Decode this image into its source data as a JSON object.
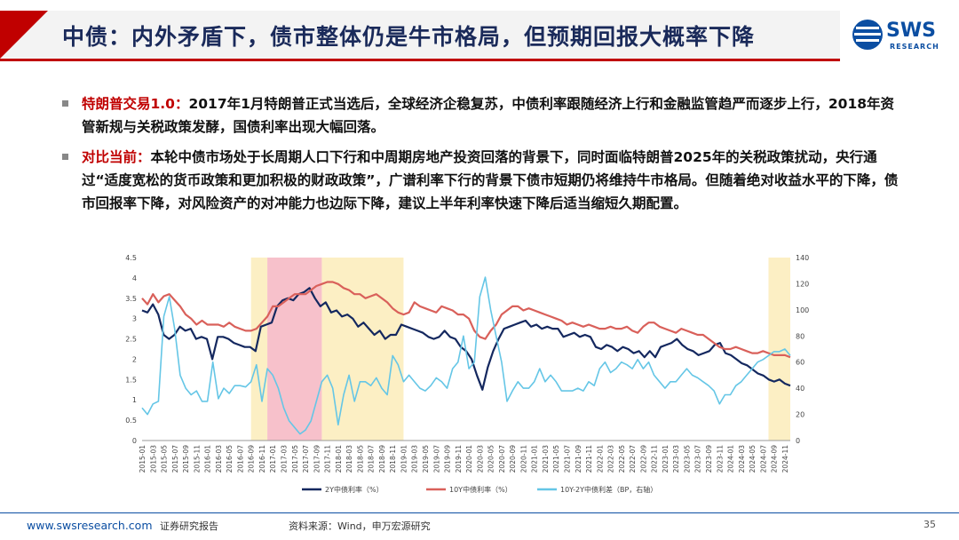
{
  "header": {
    "title": "中债：内外矛盾下，债市整体仍是牛市格局，但预期回报大概率下降",
    "logo_text": "SWS",
    "logo_sub": "RESEARCH"
  },
  "bullets": [
    {
      "lead": "特朗普交易1.0：",
      "text": "2017年1月特朗普正式当选后，全球经济企稳复苏，中债利率跟随经济上行和金融监管趋严而逐步上行，2018年资管新规与关税政策发酵，国债利率出现大幅回落。"
    },
    {
      "lead": "对比当前：",
      "text": "本轮中债市场处于长周期人口下行和中周期房地产投资回落的背景下，同时面临特朗普2025年的关税政策扰动，央行通过“适度宽松的货币政策和更加积极的财政政策”，广谱利率下行的背景下债市短期仍将维持牛市格局。但随着绝对收益水平的下降，债市回报率下降，对风险资产的对冲能力也边际下降，建议上半年利率快速下降后适当缩短久期配置。"
    }
  ],
  "chart_data": {
    "type": "line",
    "x_ticks": [
      "2015-01",
      "2015-03",
      "2015-05",
      "2015-07",
      "2015-09",
      "2015-11",
      "2016-01",
      "2016-03",
      "2016-05",
      "2016-07",
      "2016-09",
      "2016-11",
      "2017-01",
      "2017-03",
      "2017-05",
      "2017-07",
      "2017-09",
      "2017-11",
      "2018-01",
      "2018-03",
      "2018-05",
      "2018-07",
      "2018-09",
      "2018-11",
      "2019-01",
      "2019-03",
      "2019-05",
      "2019-07",
      "2019-09",
      "2019-11",
      "2020-01",
      "2020-03",
      "2020-05",
      "2020-07",
      "2020-09",
      "2020-11",
      "2021-01",
      "2021-03",
      "2021-05",
      "2021-07",
      "2021-09",
      "2021-11",
      "2022-01",
      "2022-03",
      "2022-05",
      "2022-07",
      "2022-09",
      "2022-11",
      "2023-01",
      "2023-03",
      "2023-05",
      "2023-07",
      "2023-09",
      "2023-11",
      "2024-01",
      "2024-03",
      "2024-05",
      "2024-07",
      "2024-09",
      "2024-11"
    ],
    "yleft": {
      "min": 0,
      "max": 4.5,
      "ticks": [
        "0",
        "0.5",
        "1",
        "1.5",
        "2",
        "2.5",
        "3",
        "3.5",
        "4",
        "4.5"
      ]
    },
    "yright": {
      "min": 0,
      "max": 140,
      "ticks": [
        "0",
        "20",
        "40",
        "60",
        "80",
        "100",
        "120",
        "140"
      ]
    },
    "shaded_regions": [
      {
        "from": "2016-09",
        "to": "2016-12",
        "color": "#fcefc4"
      },
      {
        "from": "2016-12",
        "to": "2017-10",
        "color": "#f7c1cb"
      },
      {
        "from": "2017-10",
        "to": "2019-01",
        "color": "#fcefc4"
      },
      {
        "from": "2024-08",
        "to": "2024-12",
        "color": "#fcefc4"
      }
    ],
    "series": [
      {
        "name": "2Y中债利率（%）",
        "axis": "left",
        "color": "#14285f",
        "values": [
          3.2,
          3.15,
          3.35,
          3.1,
          2.6,
          2.5,
          2.6,
          2.8,
          2.7,
          2.75,
          2.5,
          2.55,
          2.5,
          2.0,
          2.55,
          2.55,
          2.5,
          2.4,
          2.35,
          2.3,
          2.3,
          2.2,
          2.8,
          2.85,
          2.9,
          3.3,
          3.45,
          3.5,
          3.45,
          3.6,
          3.65,
          3.75,
          3.5,
          3.3,
          3.4,
          3.15,
          3.2,
          3.05,
          3.1,
          3.0,
          2.8,
          2.9,
          2.75,
          2.6,
          2.7,
          2.5,
          2.6,
          2.6,
          2.85,
          2.8,
          2.75,
          2.7,
          2.65,
          2.55,
          2.5,
          2.55,
          2.7,
          2.55,
          2.5,
          2.3,
          2.2,
          2.0,
          1.6,
          1.25,
          1.8,
          2.2,
          2.5,
          2.75,
          2.8,
          2.85,
          2.9,
          2.95,
          2.8,
          2.85,
          2.75,
          2.8,
          2.75,
          2.75,
          2.55,
          2.6,
          2.65,
          2.55,
          2.6,
          2.55,
          2.3,
          2.25,
          2.35,
          2.3,
          2.2,
          2.3,
          2.25,
          2.15,
          2.2,
          2.05,
          2.2,
          2.05,
          2.3,
          2.35,
          2.4,
          2.5,
          2.35,
          2.25,
          2.2,
          2.1,
          2.15,
          2.2,
          2.35,
          2.4,
          2.15,
          2.1,
          2.0,
          1.9,
          1.85,
          1.75,
          1.65,
          1.6,
          1.5,
          1.45,
          1.5,
          1.4,
          1.35
        ]
      },
      {
        "name": "10Y中债利率（%）",
        "axis": "left",
        "color": "#d9605a",
        "values": [
          3.5,
          3.35,
          3.6,
          3.4,
          3.55,
          3.6,
          3.45,
          3.3,
          3.1,
          3.0,
          2.85,
          2.95,
          2.85,
          2.85,
          2.85,
          2.8,
          2.9,
          2.8,
          2.75,
          2.7,
          2.7,
          2.75,
          2.9,
          3.05,
          3.3,
          3.3,
          3.4,
          3.5,
          3.6,
          3.6,
          3.6,
          3.7,
          3.8,
          3.85,
          3.9,
          3.9,
          3.85,
          3.75,
          3.7,
          3.6,
          3.6,
          3.5,
          3.55,
          3.6,
          3.5,
          3.4,
          3.25,
          3.15,
          3.1,
          3.15,
          3.4,
          3.3,
          3.25,
          3.2,
          3.15,
          3.3,
          3.25,
          3.2,
          3.1,
          3.1,
          3.0,
          2.7,
          2.55,
          2.5,
          2.7,
          2.85,
          3.1,
          3.2,
          3.3,
          3.3,
          3.2,
          3.25,
          3.2,
          3.15,
          3.1,
          3.05,
          3.0,
          2.95,
          2.85,
          2.9,
          2.85,
          2.8,
          2.85,
          2.8,
          2.75,
          2.75,
          2.8,
          2.75,
          2.75,
          2.8,
          2.7,
          2.65,
          2.8,
          2.9,
          2.9,
          2.8,
          2.75,
          2.7,
          2.65,
          2.75,
          2.7,
          2.65,
          2.6,
          2.6,
          2.5,
          2.4,
          2.3,
          2.25,
          2.25,
          2.3,
          2.25,
          2.2,
          2.15,
          2.15,
          2.2,
          2.15,
          2.1,
          2.1,
          2.1,
          2.05
        ]
      },
      {
        "name": "10Y-2Y中债利差（BP，右轴）",
        "axis": "right",
        "color": "#65c6e6",
        "values": [
          25,
          20,
          28,
          30,
          95,
          110,
          85,
          50,
          40,
          35,
          38,
          30,
          30,
          60,
          32,
          40,
          36,
          42,
          42,
          41,
          45,
          58,
          30,
          55,
          50,
          40,
          25,
          15,
          10,
          5,
          8,
          15,
          30,
          45,
          50,
          40,
          12,
          35,
          50,
          30,
          45,
          45,
          42,
          48,
          40,
          35,
          65,
          58,
          45,
          50,
          45,
          40,
          38,
          42,
          48,
          45,
          40,
          55,
          60,
          80,
          55,
          60,
          110,
          125,
          100,
          80,
          60,
          30,
          38,
          45,
          40,
          40,
          45,
          55,
          45,
          50,
          45,
          38,
          38,
          38,
          40,
          38,
          45,
          42,
          55,
          60,
          52,
          55,
          60,
          58,
          55,
          62,
          55,
          60,
          50,
          45,
          40,
          45,
          45,
          50,
          55,
          50,
          48,
          45,
          42,
          38,
          28,
          35,
          35,
          42,
          45,
          50,
          55,
          60,
          62,
          65,
          68,
          68,
          70,
          65
        ]
      }
    ],
    "xlabel": "",
    "ylabel": "",
    "legend_position": "bottom"
  },
  "footer": {
    "url": "www.swsresearch.com",
    "doc_type": "证券研究报告",
    "source": "资料来源：Wind，申万宏源研究",
    "page": "35"
  }
}
